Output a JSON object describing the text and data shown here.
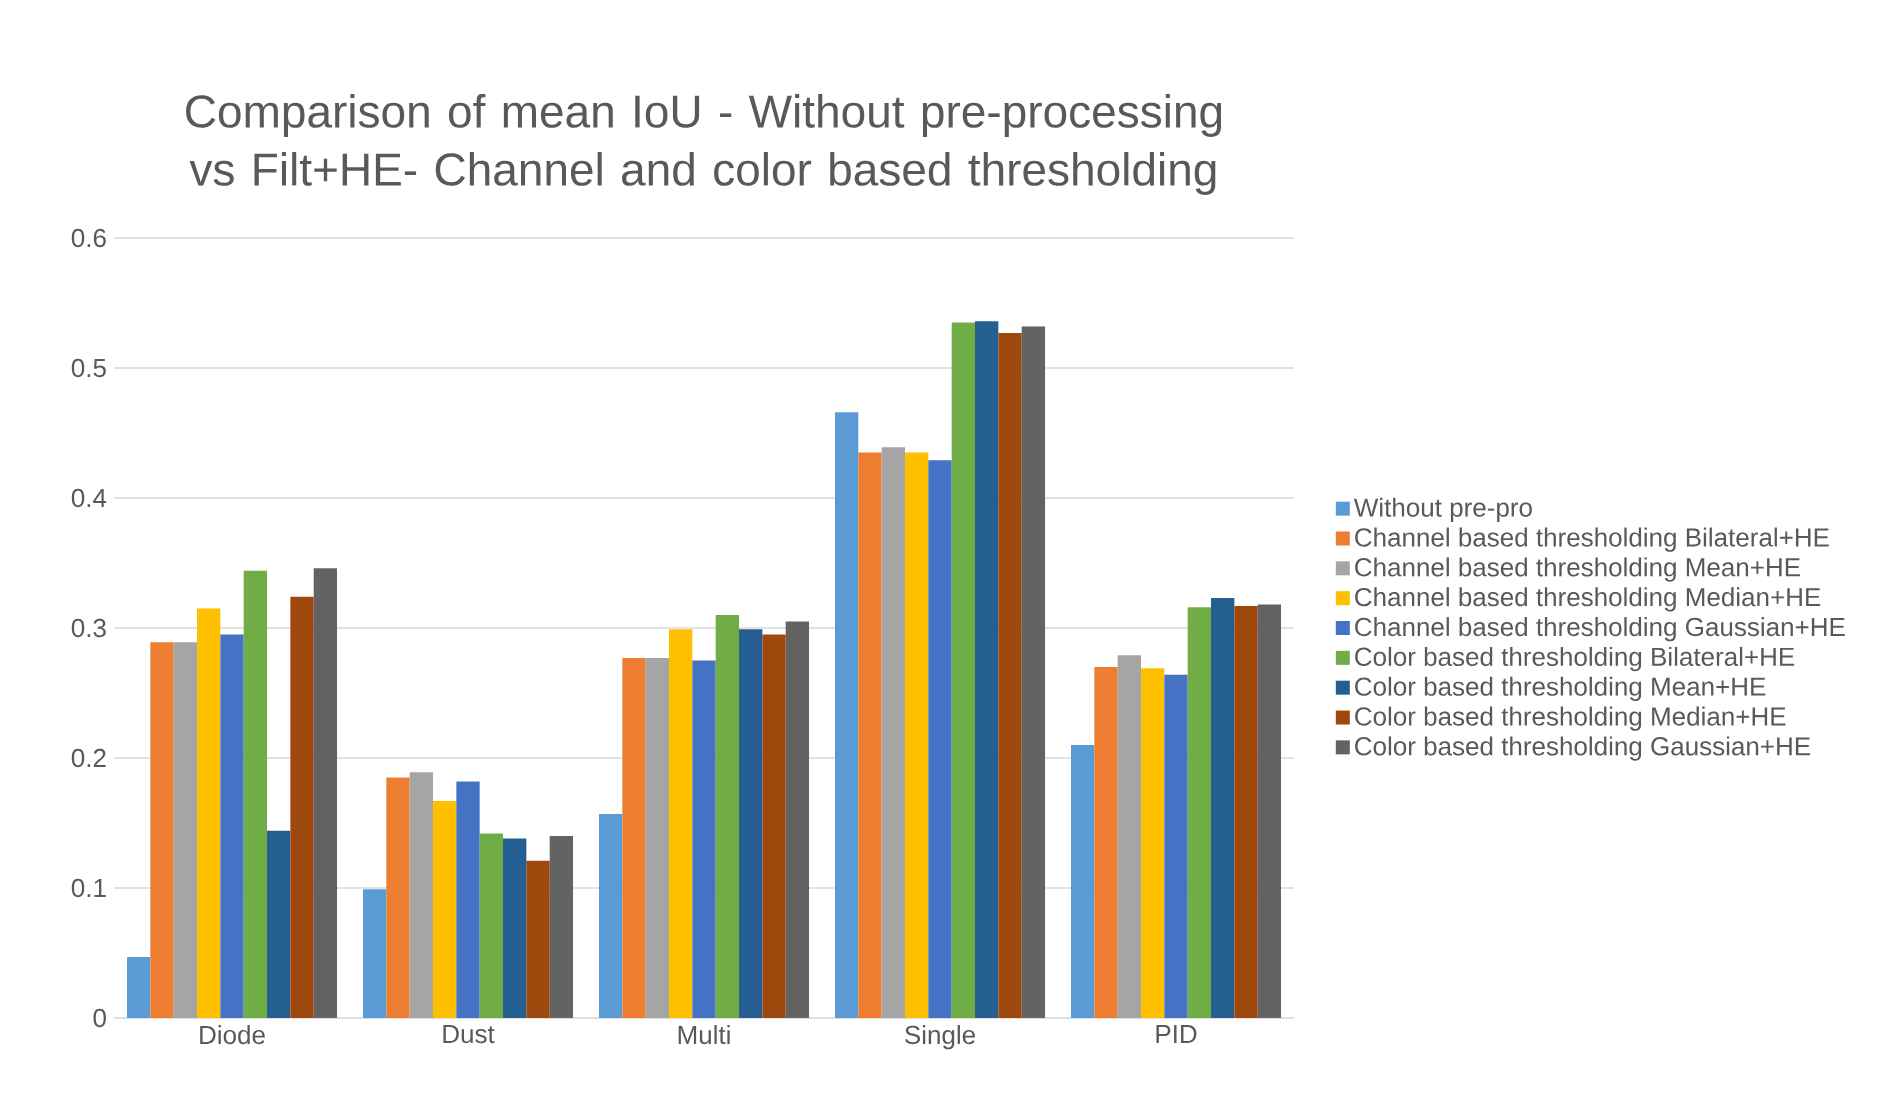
{
  "chart_data": {
    "type": "bar",
    "title": "Comparison of mean IoU - Without pre-processing vs Filt+HE- Channel and color based thresholding",
    "categories": [
      "Diode",
      "Dust",
      "Multi",
      "Single",
      "PID"
    ],
    "series": [
      {
        "name": "Without pre-pro",
        "color": "#5b9bd5",
        "values": [
          0.047,
          0.099,
          0.157,
          0.466,
          0.21
        ]
      },
      {
        "name": "Channel based thresholding Bilateral+HE",
        "color": "#ed7d31",
        "values": [
          0.289,
          0.185,
          0.277,
          0.435,
          0.27
        ]
      },
      {
        "name": "Channel based thresholding Mean+HE",
        "color": "#a5a5a5",
        "values": [
          0.289,
          0.189,
          0.277,
          0.439,
          0.279
        ]
      },
      {
        "name": "Channel based thresholding Median+HE",
        "color": "#ffc000",
        "values": [
          0.315,
          0.167,
          0.299,
          0.435,
          0.269
        ]
      },
      {
        "name": "Channel based thresholding Gaussian+HE",
        "color": "#4472c4",
        "values": [
          0.295,
          0.182,
          0.275,
          0.429,
          0.264
        ]
      },
      {
        "name": "Color based thresholding Bilateral+HE",
        "color": "#70ad47",
        "values": [
          0.344,
          0.142,
          0.31,
          0.535,
          0.316
        ]
      },
      {
        "name": "Color based thresholding Mean+HE",
        "color": "#255e91",
        "values": [
          0.144,
          0.138,
          0.299,
          0.536,
          0.323
        ]
      },
      {
        "name": "Color based thresholding Median+HE",
        "color": "#9e480e",
        "values": [
          0.324,
          0.121,
          0.295,
          0.527,
          0.317
        ]
      },
      {
        "name": "Color based thresholding Gaussian+HE",
        "color": "#636363",
        "values": [
          0.346,
          0.14,
          0.305,
          0.532,
          0.318
        ]
      }
    ],
    "ylim": [
      0,
      0.6
    ],
    "yticks": [
      0,
      0.1,
      0.2,
      0.3,
      0.4,
      0.5,
      0.6
    ],
    "grid": "y",
    "legend": "right"
  }
}
